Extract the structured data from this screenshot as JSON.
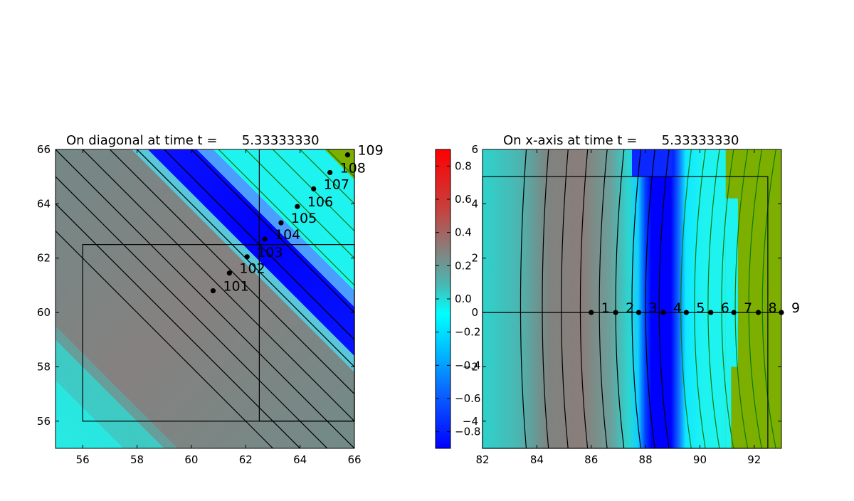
{
  "chart_data": [
    {
      "type": "heatmap",
      "title": "On diagonal at time t =      5.33333330",
      "xlim": [
        55,
        66
      ],
      "ylim": [
        55,
        66
      ],
      "xticks": [
        56,
        58,
        60,
        62,
        64,
        66
      ],
      "yticks": [
        56,
        58,
        60,
        62,
        64,
        66
      ],
      "boxes": [
        {
          "x0": 56,
          "x1": 66,
          "y0": 56,
          "y1": 62.5
        },
        {
          "x0": 62.5,
          "x1": 66,
          "y0": 56,
          "y1": 66
        }
      ],
      "points": [
        {
          "x": 60.8,
          "y": 60.8,
          "label": "101"
        },
        {
          "x": 61.4,
          "y": 61.45,
          "label": "102"
        },
        {
          "x": 62.05,
          "y": 62.05,
          "label": "103"
        },
        {
          "x": 62.7,
          "y": 62.7,
          "label": "104"
        },
        {
          "x": 63.3,
          "y": 63.3,
          "label": "105"
        },
        {
          "x": 63.9,
          "y": 63.9,
          "label": "106"
        },
        {
          "x": 64.5,
          "y": 64.55,
          "label": "107"
        },
        {
          "x": 65.1,
          "y": 65.15,
          "label": "108"
        },
        {
          "x": 65.75,
          "y": 65.8,
          "label": "109"
        }
      ],
      "contour_levels_sum": [
        118,
        119,
        120,
        121,
        122,
        123,
        124,
        125,
        126,
        127,
        128,
        129,
        130,
        131
      ],
      "colors": {
        "cyan": "#22e9e4",
        "gray": "#7f837f",
        "blue": "#0a16ff",
        "green": "#7caf00",
        "contour_dark": "#000000",
        "contour_green": "#0b7a0b"
      }
    },
    {
      "type": "heatmap",
      "title": "On x-axis at time t =      5.33333330",
      "xlim": [
        82,
        93
      ],
      "ylim": [
        -5,
        6
      ],
      "xticks": [
        82,
        84,
        86,
        88,
        90,
        92
      ],
      "yticks": [
        -4,
        -2,
        0,
        2,
        4,
        6
      ],
      "yticklabels": [
        "−4",
        "−2",
        "0",
        "2",
        "4",
        "6"
      ],
      "box": {
        "x0": 82,
        "x1": 92.5,
        "y0": -5,
        "y1": 5
      },
      "hline_y": 0,
      "points": [
        {
          "x": 86.0,
          "y": 0,
          "label": "1"
        },
        {
          "x": 86.9,
          "y": 0,
          "label": "2"
        },
        {
          "x": 87.75,
          "y": 0,
          "label": "3"
        },
        {
          "x": 88.65,
          "y": 0,
          "label": "4"
        },
        {
          "x": 89.5,
          "y": 0,
          "label": "5"
        },
        {
          "x": 90.4,
          "y": 0,
          "label": "6"
        },
        {
          "x": 91.25,
          "y": 0,
          "label": "7"
        },
        {
          "x": 92.15,
          "y": 0,
          "label": "8"
        },
        {
          "x": 93.0,
          "y": 0,
          "label": "9"
        }
      ],
      "contour_x": [
        83.4,
        84.2,
        84.9,
        85.6,
        86.3,
        86.9,
        87.5,
        88.0,
        88.5,
        89.3,
        89.8,
        90.3,
        90.8,
        91.3,
        91.8,
        92.3
      ]
    }
  ],
  "colorbar": {
    "range": [
      -0.9,
      0.9
    ],
    "ticks": [
      0.8,
      0.6,
      0.4,
      0.2,
      0.0,
      -0.2,
      -0.4,
      -0.6,
      -0.8
    ],
    "ticklabels": [
      "0.8",
      "0.6",
      "0.4",
      "0.2",
      "0.0",
      "−0.2",
      "−0.4",
      "−0.6",
      "−0.8"
    ]
  }
}
